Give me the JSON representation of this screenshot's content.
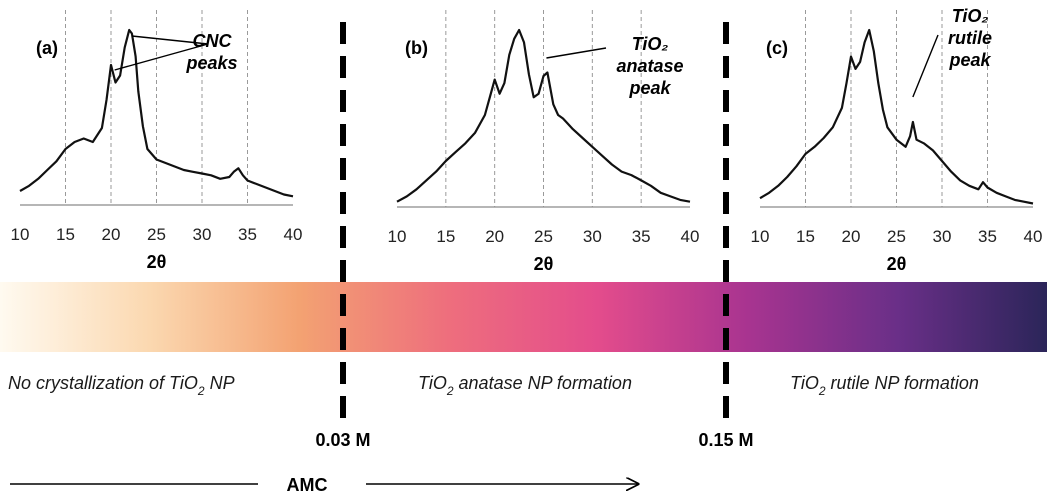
{
  "chart_data": [
    {
      "type": "line",
      "panel_label": "(a)",
      "xlabel": "2θ",
      "xlim": [
        10,
        40
      ],
      "x_ticks": [
        10,
        15,
        20,
        25,
        30,
        35,
        40
      ],
      "grid": "vertical dashed",
      "annotation": {
        "lines": [
          "CNC",
          "peaks"
        ],
        "targets_x": [
          20.4,
          22.3
        ]
      },
      "series": [
        {
          "x": [
            10,
            11,
            12,
            13,
            14,
            15,
            16,
            17,
            18,
            19,
            19.5,
            20,
            20.5,
            21,
            21.5,
            22,
            22.3,
            22.7,
            23,
            23.5,
            24,
            25,
            26,
            27,
            28,
            29,
            30,
            31,
            32,
            33,
            33.5,
            34,
            34.5,
            35,
            36,
            37,
            38,
            39,
            40
          ],
          "y": [
            0.08,
            0.11,
            0.15,
            0.2,
            0.25,
            0.32,
            0.36,
            0.38,
            0.36,
            0.44,
            0.6,
            0.8,
            0.7,
            0.74,
            0.9,
            1.0,
            0.98,
            0.85,
            0.65,
            0.45,
            0.32,
            0.26,
            0.24,
            0.22,
            0.2,
            0.19,
            0.18,
            0.17,
            0.15,
            0.16,
            0.19,
            0.21,
            0.17,
            0.14,
            0.12,
            0.1,
            0.08,
            0.06,
            0.05
          ]
        }
      ]
    },
    {
      "type": "line",
      "panel_label": "(b)",
      "xlabel": "2θ",
      "xlim": [
        10,
        40
      ],
      "x_ticks": [
        10,
        15,
        20,
        25,
        30,
        35,
        40
      ],
      "grid": "vertical dashed",
      "annotation": {
        "lines": [
          "TiO₂",
          "anatase",
          "peak"
        ],
        "targets_x": [
          25.3
        ]
      },
      "series": [
        {
          "x": [
            10,
            11,
            12,
            13,
            14,
            15,
            16,
            17,
            18,
            19,
            19.5,
            20,
            20.5,
            21,
            21.5,
            22,
            22.5,
            23,
            23.5,
            24,
            24.5,
            25,
            25.4,
            26,
            26.5,
            27,
            28,
            29,
            30,
            31,
            32,
            33,
            34,
            35,
            36,
            37,
            38,
            39,
            40
          ],
          "y": [
            0.03,
            0.06,
            0.1,
            0.15,
            0.2,
            0.26,
            0.31,
            0.36,
            0.42,
            0.52,
            0.62,
            0.72,
            0.64,
            0.7,
            0.86,
            0.95,
            1.0,
            0.93,
            0.75,
            0.62,
            0.64,
            0.74,
            0.76,
            0.58,
            0.52,
            0.5,
            0.44,
            0.39,
            0.34,
            0.29,
            0.24,
            0.2,
            0.18,
            0.15,
            0.12,
            0.08,
            0.06,
            0.04,
            0.03
          ]
        }
      ]
    },
    {
      "type": "line",
      "panel_label": "(c)",
      "xlabel": "2θ",
      "xlim": [
        10,
        40
      ],
      "x_ticks": [
        10,
        15,
        20,
        25,
        30,
        35,
        40
      ],
      "grid": "vertical dashed",
      "annotation": {
        "lines": [
          "TiO₂",
          "rutile",
          "peak"
        ],
        "targets_x": [
          26.8
        ]
      },
      "series": [
        {
          "x": [
            10,
            11,
            12,
            13,
            14,
            15,
            16,
            17,
            18,
            19,
            19.5,
            20,
            20.5,
            21,
            21.5,
            22,
            22.5,
            23,
            23.5,
            24,
            25,
            26,
            26.5,
            26.8,
            27.2,
            28,
            29,
            30,
            31,
            32,
            33,
            34,
            34.5,
            35,
            36,
            37,
            38,
            39,
            40
          ],
          "y": [
            0.05,
            0.08,
            0.12,
            0.17,
            0.23,
            0.3,
            0.34,
            0.39,
            0.45,
            0.56,
            0.7,
            0.85,
            0.78,
            0.82,
            0.93,
            1.0,
            0.88,
            0.7,
            0.55,
            0.45,
            0.38,
            0.34,
            0.4,
            0.48,
            0.38,
            0.36,
            0.32,
            0.26,
            0.2,
            0.15,
            0.12,
            0.1,
            0.14,
            0.11,
            0.08,
            0.06,
            0.04,
            0.03,
            0.02
          ]
        }
      ]
    }
  ],
  "gradient": {
    "colors": [
      "#fffaf0",
      "#fbd8b0",
      "#f3a272",
      "#ee6e7d",
      "#e34c8c",
      "#a83490",
      "#6a2f88",
      "#2b2559"
    ]
  },
  "thresholds": [
    {
      "label": "0.03 M"
    },
    {
      "label": "0.15 M"
    }
  ],
  "regions": [
    {
      "text_pre": "No crystallization of TiO",
      "sub": "2",
      "text_post": " NP"
    },
    {
      "text_pre": "TiO",
      "sub": "2",
      "text_post": " anatase NP formation"
    },
    {
      "text_pre": "TiO",
      "sub": "2",
      "text_post": " rutile NP formation"
    }
  ],
  "axis_arrow": {
    "label": "AMC"
  }
}
